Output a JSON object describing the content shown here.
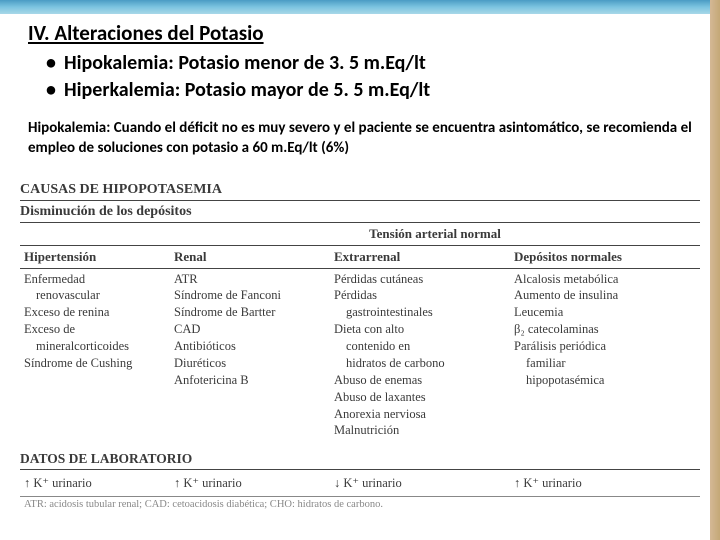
{
  "title": "IV. Alteraciones del Potasio",
  "bullets": {
    "b1": "Hipokalemia: Potasio menor de 3. 5 m.Eq/lt",
    "b2": "Hiperkalemia: Potasio mayor de 5. 5 m.Eq/lt"
  },
  "paragraph": "Hipokalemia: Cuando el déficit no es muy severo y el paciente se encuentra asintomático, se recomienda el empleo de soluciones con potasio a 60 m.Eq/lt (6%)",
  "table": {
    "caption1": "CAUSAS DE HIPOPOTASEMIA",
    "caption2": "Disminución de los depósitos",
    "tension_normal": "Tensión arterial normal",
    "headers": {
      "h1": "Hipertensión",
      "h2": "Renal",
      "h3": "Extrarrenal",
      "h4": "Depósitos normales"
    },
    "col1": {
      "l1": "Enfermedad",
      "l2": "renovascular",
      "l3": "Exceso de renina",
      "l4": "Exceso de",
      "l5": "mineralcorticoides",
      "l6": "Síndrome de Cushing"
    },
    "col2": {
      "l1": "ATR",
      "l2": "Síndrome de Fanconi",
      "l3": "Síndrome de Bartter",
      "l4": "CAD",
      "l5": "Antibióticos",
      "l6": "Diuréticos",
      "l7": "Anfotericina B"
    },
    "col3": {
      "l1": "Pérdidas cutáneas",
      "l2": "Pérdidas",
      "l3": "gastrointestinales",
      "l4": "Dieta con alto",
      "l5": "contenido en",
      "l6": "hidratos de carbono",
      "l7": "Abuso de enemas",
      "l8": "Abuso de laxantes",
      "l9": "Anorexia nerviosa",
      "l10": "Malnutrición"
    },
    "col4": {
      "l1": "Alcalosis metabólica",
      "l2": "Aumento de insulina",
      "l3": "Leucemia",
      "l4": "β₂ catecolaminas",
      "l5": "Parálisis periódica",
      "l6": "familiar",
      "l7": "hipopotasémica"
    }
  },
  "lab": {
    "head": "DATOS DE LABORATORIO",
    "c1": "↑ K⁺ urinario",
    "c2": "↑ K⁺ urinario",
    "c3": "↓ K⁺ urinario",
    "c4": "↑ K⁺ urinario"
  },
  "abbr": "ATR: acidosis tubular renal; CAD: cetoacidosis diabética; CHO: hidratos de carbono."
}
